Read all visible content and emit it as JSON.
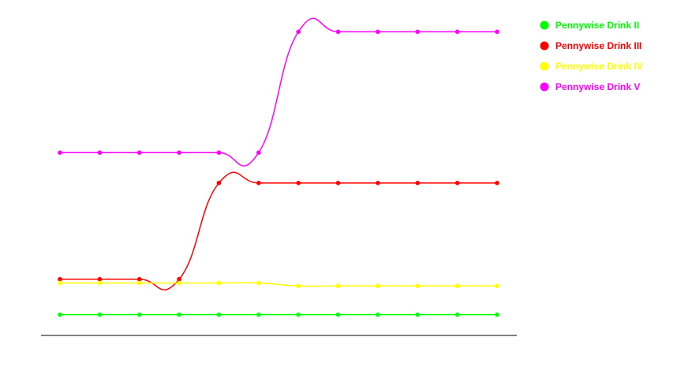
{
  "chart_data": {
    "type": "line",
    "title": "",
    "xlabel": "",
    "ylabel": "",
    "x": [
      1,
      2,
      3,
      4,
      5,
      6,
      7,
      8,
      9,
      10,
      11,
      12
    ],
    "ylim": [
      0,
      100
    ],
    "grid": false,
    "legend_position": "top-right",
    "smooth": true,
    "series": [
      {
        "name": "Pennywise Drink II",
        "color": "#00ff00",
        "values": [
          6.5,
          6.5,
          6.5,
          6.5,
          6.5,
          6.5,
          6.5,
          6.5,
          6.5,
          6.5,
          6.5,
          6.5
        ]
      },
      {
        "name": "Pennywise Drink III",
        "color": "#ff0000",
        "values": [
          17.6,
          17.6,
          17.6,
          17.6,
          47.7,
          47.7,
          47.7,
          47.7,
          47.7,
          47.7,
          47.7,
          47.7
        ]
      },
      {
        "name": "Pennywise Drink IV",
        "color": "#ffff00",
        "values": [
          16.4,
          16.4,
          16.4,
          16.4,
          16.4,
          16.4,
          15.5,
          15.5,
          15.5,
          15.5,
          15.5,
          15.5
        ]
      },
      {
        "name": "Pennywise Drink V",
        "color": "#ff00ff",
        "values": [
          57.2,
          57.2,
          57.2,
          57.2,
          57.2,
          57.2,
          95.0,
          95.0,
          95.0,
          95.0,
          95.0,
          95.0
        ]
      }
    ]
  }
}
